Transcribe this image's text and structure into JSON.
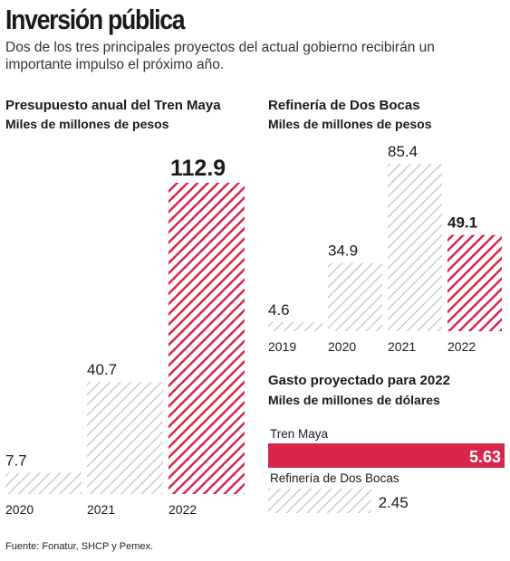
{
  "header": {
    "title": "Inversión pública",
    "subtitle": "Dos de los tres principales proyectos del actual gobierno recibirán un importante impulso el próximo año."
  },
  "source": "Fuente: Fonatur, SHCP y Pemex.",
  "colors": {
    "highlight": "#d9264a",
    "hatch_gray": "#bdbdbd",
    "text": "#1a1a1a"
  },
  "chart_data": [
    {
      "type": "bar",
      "title": "Presupuesto anual del Tren Maya",
      "subtitle": "Miles de millones de pesos",
      "categories": [
        "2020",
        "2021",
        "2022"
      ],
      "values": [
        7.7,
        40.7,
        112.9
      ],
      "value_labels": [
        "7.7",
        "40.7",
        "112.9"
      ],
      "highlight_index": 2,
      "ylim": [
        0,
        112.9
      ]
    },
    {
      "type": "bar",
      "title": "Refinería de Dos Bocas",
      "subtitle": "Miles de millones de pesos",
      "categories": [
        "2019",
        "2020",
        "2021",
        "2022"
      ],
      "values": [
        4.6,
        34.9,
        85.4,
        49.1
      ],
      "value_labels": [
        "4.6",
        "34.9",
        "85.4",
        "49.1"
      ],
      "highlight_index": 3,
      "ylim": [
        0,
        85.4
      ]
    },
    {
      "type": "bar",
      "orientation": "horizontal",
      "title": "Gasto proyectado para 2022",
      "subtitle": "Miles de millones de dólares",
      "categories": [
        "Tren Maya",
        "Refinería de Dos Bocas"
      ],
      "values": [
        5.63,
        2.45
      ],
      "value_labels": [
        "5.63",
        "2.45"
      ],
      "highlight_index": 0,
      "xlim": [
        0,
        5.63
      ]
    }
  ]
}
